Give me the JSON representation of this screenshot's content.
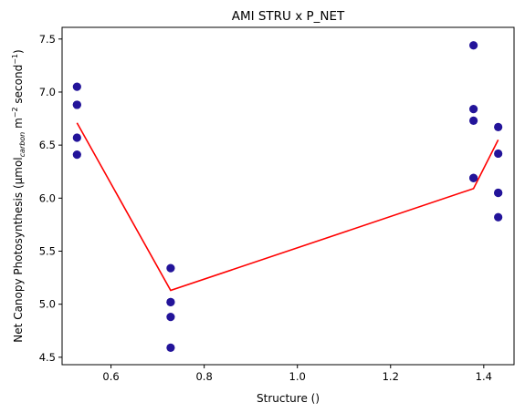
{
  "chart_data": {
    "type": "scatter",
    "title": "AMI STRU x P_NET",
    "xlabel": "Structure ()",
    "ylabel": {
      "main": "Net Canopy Photosynthesis (µmol",
      "sub": "carbon",
      "mid": " m",
      "sup1": "−2",
      "mid2": " second",
      "sup2": "−1",
      "end": ")"
    },
    "xlim": [
      0.495,
      1.465
    ],
    "ylim": [
      4.43,
      7.61
    ],
    "xticks": [
      {
        "value": 0.6,
        "label": "0.6"
      },
      {
        "value": 0.8,
        "label": "0.8"
      },
      {
        "value": 1.0,
        "label": "1.0"
      },
      {
        "value": 1.2,
        "label": "1.2"
      },
      {
        "value": 1.4,
        "label": "1.4"
      }
    ],
    "yticks": [
      {
        "value": 4.5,
        "label": "4.5"
      },
      {
        "value": 5.0,
        "label": "5.0"
      },
      {
        "value": 5.5,
        "label": "5.5"
      },
      {
        "value": 6.0,
        "label": "6.0"
      },
      {
        "value": 6.5,
        "label": "6.5"
      },
      {
        "value": 7.0,
        "label": "7.0"
      },
      {
        "value": 7.5,
        "label": "7.5"
      }
    ],
    "grid": false,
    "series": [
      {
        "kind": "scatter",
        "color": "#23149a",
        "points": [
          {
            "x": 0.527,
            "y": 7.05
          },
          {
            "x": 0.527,
            "y": 6.88
          },
          {
            "x": 0.527,
            "y": 6.88
          },
          {
            "x": 0.527,
            "y": 6.57
          },
          {
            "x": 0.527,
            "y": 6.41
          },
          {
            "x": 0.728,
            "y": 5.34
          },
          {
            "x": 0.728,
            "y": 5.02
          },
          {
            "x": 0.728,
            "y": 5.02
          },
          {
            "x": 0.728,
            "y": 4.88
          },
          {
            "x": 0.728,
            "y": 4.59
          },
          {
            "x": 1.378,
            "y": 7.44
          },
          {
            "x": 1.378,
            "y": 6.84
          },
          {
            "x": 1.378,
            "y": 6.73
          },
          {
            "x": 1.378,
            "y": 6.19
          },
          {
            "x": 1.378,
            "y": 6.19
          },
          {
            "x": 1.431,
            "y": 6.67
          },
          {
            "x": 1.431,
            "y": 6.42
          },
          {
            "x": 1.431,
            "y": 6.05
          },
          {
            "x": 1.431,
            "y": 6.05
          },
          {
            "x": 1.431,
            "y": 5.82
          }
        ]
      },
      {
        "kind": "line",
        "color": "#ff0000",
        "points": [
          {
            "x": 0.527,
            "y": 6.71
          },
          {
            "x": 0.728,
            "y": 5.13
          },
          {
            "x": 1.378,
            "y": 6.09
          },
          {
            "x": 1.431,
            "y": 6.55
          }
        ]
      }
    ]
  }
}
